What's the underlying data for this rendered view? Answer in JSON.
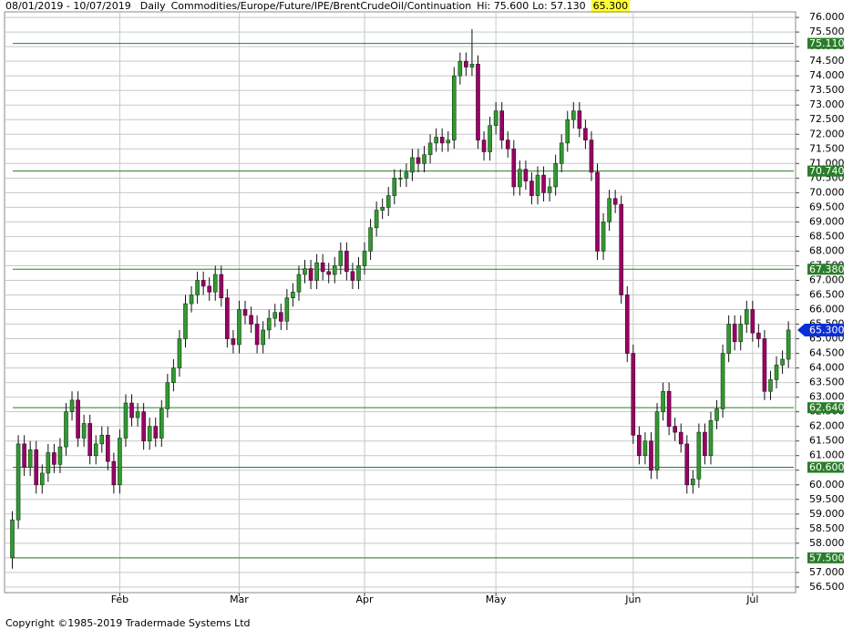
{
  "chart_data": {
    "type": "candlestick",
    "header": {
      "range": "08/01/2019 - 10/07/2019",
      "interval": "Daily",
      "symbol": "Commodities/Europe/Future/IPE/BrentCrudeOil/Continuation",
      "hi": "Hi: 75.600",
      "lo": "Lo: 57.130"
    },
    "last": {
      "value": 65.3,
      "label": "65.300"
    },
    "footer": "Copyright ©1985-2019 Tradermade Systems Ltd",
    "up_color": "#339933",
    "down_color": "#990066",
    "level_color": "#2a7d2a",
    "last_color": "#0a2fd6",
    "grid": true,
    "xlim": [
      -1.3,
      131.2
    ],
    "xticks": [
      {
        "value": 18,
        "label": "Feb"
      },
      {
        "value": 38,
        "label": "Mar"
      },
      {
        "value": 59,
        "label": "Apr"
      },
      {
        "value": 81,
        "label": "May"
      },
      {
        "value": 104,
        "label": "Jun"
      },
      {
        "value": 124,
        "label": "Jul"
      }
    ],
    "ylim": [
      56.31,
      76.19
    ],
    "yticks": [
      {
        "value": 56.5,
        "label": "56.500"
      },
      {
        "value": 57,
        "label": "57.000"
      },
      {
        "value": 57.5,
        "label": "57.500"
      },
      {
        "value": 58,
        "label": "58.000"
      },
      {
        "value": 58.5,
        "label": "58.500"
      },
      {
        "value": 59,
        "label": "59.000"
      },
      {
        "value": 59.5,
        "label": "59.500"
      },
      {
        "value": 60,
        "label": "60.000"
      },
      {
        "value": 60.5,
        "label": "60.500"
      },
      {
        "value": 61,
        "label": "61.000"
      },
      {
        "value": 61.5,
        "label": "61.500"
      },
      {
        "value": 62,
        "label": "62.000"
      },
      {
        "value": 62.5,
        "label": "62.500"
      },
      {
        "value": 63,
        "label": "63.000"
      },
      {
        "value": 63.5,
        "label": "63.500"
      },
      {
        "value": 64,
        "label": "64.000"
      },
      {
        "value": 64.5,
        "label": "64.500"
      },
      {
        "value": 65,
        "label": "65.000"
      },
      {
        "value": 65.5,
        "label": "65.500"
      },
      {
        "value": 66,
        "label": "66.000"
      },
      {
        "value": 66.5,
        "label": "66.500"
      },
      {
        "value": 67,
        "label": "67.000"
      },
      {
        "value": 67.5,
        "label": "67.500"
      },
      {
        "value": 68,
        "label": "68.000"
      },
      {
        "value": 68.5,
        "label": "68.500"
      },
      {
        "value": 69,
        "label": "69.000"
      },
      {
        "value": 69.5,
        "label": "69.500"
      },
      {
        "value": 70,
        "label": "70.000"
      },
      {
        "value": 70.5,
        "label": "70.500"
      },
      {
        "value": 71,
        "label": "71.000"
      },
      {
        "value": 71.5,
        "label": "71.500"
      },
      {
        "value": 72,
        "label": "72.000"
      },
      {
        "value": 72.5,
        "label": "72.500"
      },
      {
        "value": 73,
        "label": "73.000"
      },
      {
        "value": 73.5,
        "label": "73.500"
      },
      {
        "value": 74,
        "label": "74.000"
      },
      {
        "value": 74.5,
        "label": "74.500"
      },
      {
        "value": 75,
        "label": "75.000"
      },
      {
        "value": 75.5,
        "label": "75.500"
      },
      {
        "value": 76,
        "label": "76.000"
      }
    ],
    "levels": [
      {
        "value": 75.11,
        "label": "75.110"
      },
      {
        "value": 70.74,
        "label": "70.740"
      },
      {
        "value": 67.38,
        "label": "67.380"
      },
      {
        "value": 62.64,
        "label": "62.640"
      },
      {
        "value": 60.6,
        "label": "60.600"
      },
      {
        "value": 57.5,
        "label": "57.500"
      }
    ],
    "open": [
      57.5,
      58.8,
      61.4,
      60.6,
      61.2,
      60.0,
      60.4,
      61.1,
      60.7,
      61.3,
      62.5,
      62.9,
      61.6,
      62.1,
      61.0,
      61.4,
      61.7,
      60.8,
      60.0,
      61.6,
      62.8,
      62.3,
      62.5,
      61.5,
      62.0,
      61.6,
      62.6,
      63.5,
      64.0,
      65.0,
      66.2,
      66.5,
      67.0,
      66.8,
      66.6,
      67.2,
      66.4,
      65.0,
      64.8,
      66.0,
      65.8,
      65.5,
      64.8,
      65.3,
      65.7,
      65.9,
      65.6,
      66.4,
      66.6,
      67.2,
      67.4,
      67.0,
      67.6,
      67.3,
      67.2,
      67.5,
      68.0,
      67.3,
      67.0,
      67.5,
      68.0,
      68.8,
      69.4,
      69.5,
      69.9,
      70.5,
      70.5,
      70.7,
      71.2,
      71.0,
      71.3,
      71.7,
      71.9,
      71.7,
      71.8,
      74.0,
      74.5,
      74.3,
      74.4,
      71.8,
      71.4,
      72.3,
      72.8,
      71.8,
      71.5,
      70.2,
      70.8,
      70.4,
      69.9,
      70.6,
      70.0,
      70.2,
      71.0,
      71.7,
      72.5,
      72.8,
      72.2,
      71.8,
      70.7,
      68.0,
      69.0,
      69.8,
      69.6,
      66.5,
      64.5,
      61.7,
      61.0,
      61.5,
      60.5,
      62.5,
      63.2,
      62.0,
      61.8,
      61.4,
      60.0,
      60.2,
      61.8,
      61.0,
      62.2,
      62.6,
      64.5,
      65.5,
      64.9,
      65.5,
      66.0,
      65.2,
      65.0,
      63.2,
      63.6,
      64.1,
      64.3
    ],
    "high": [
      59.1,
      61.7,
      61.7,
      61.5,
      61.5,
      60.7,
      61.4,
      61.4,
      61.6,
      62.8,
      63.2,
      63.2,
      62.4,
      62.4,
      61.7,
      62.0,
      62.0,
      61.1,
      61.9,
      63.1,
      63.1,
      62.8,
      62.8,
      62.3,
      62.3,
      62.9,
      63.8,
      64.3,
      65.3,
      66.5,
      66.8,
      67.3,
      67.3,
      67.1,
      67.5,
      67.5,
      66.7,
      65.3,
      66.3,
      66.3,
      66.1,
      65.8,
      65.6,
      66.0,
      66.2,
      66.2,
      66.7,
      66.9,
      67.5,
      67.7,
      67.7,
      67.9,
      67.9,
      67.6,
      67.8,
      68.3,
      68.3,
      67.6,
      67.8,
      68.3,
      69.1,
      69.7,
      69.8,
      70.2,
      70.8,
      70.8,
      71.0,
      71.5,
      71.5,
      71.6,
      72.0,
      72.2,
      72.2,
      72.1,
      74.3,
      74.8,
      74.8,
      75.6,
      74.7,
      72.1,
      72.6,
      73.1,
      73.1,
      72.1,
      71.8,
      71.1,
      71.1,
      70.7,
      70.9,
      70.9,
      70.5,
      71.3,
      72.0,
      72.8,
      73.1,
      73.1,
      72.5,
      72.1,
      71.0,
      69.3,
      70.1,
      70.1,
      69.9,
      66.8,
      64.8,
      62.0,
      61.8,
      61.8,
      62.8,
      63.5,
      63.5,
      62.3,
      62.1,
      61.7,
      60.5,
      62.1,
      62.1,
      62.5,
      62.9,
      64.8,
      65.8,
      65.8,
      65.8,
      66.3,
      66.3,
      65.5,
      65.3,
      63.9,
      64.4,
      64.6,
      65.6
    ],
    "low": [
      57.13,
      58.5,
      60.3,
      60.3,
      59.7,
      59.7,
      60.1,
      60.4,
      60.4,
      61.0,
      62.2,
      61.3,
      61.3,
      60.7,
      60.7,
      61.1,
      60.5,
      59.7,
      59.7,
      61.3,
      62.0,
      62.0,
      61.2,
      61.2,
      61.3,
      61.3,
      62.3,
      63.2,
      63.7,
      64.7,
      65.9,
      66.2,
      66.5,
      66.3,
      66.3,
      66.1,
      64.7,
      64.5,
      64.5,
      65.5,
      65.2,
      64.5,
      64.5,
      65.0,
      65.4,
      65.3,
      65.3,
      66.1,
      66.3,
      66.9,
      66.7,
      66.7,
      67.0,
      66.9,
      66.9,
      67.2,
      67.0,
      66.7,
      66.7,
      67.2,
      67.7,
      68.5,
      69.1,
      69.2,
      69.6,
      70.2,
      70.2,
      70.4,
      70.7,
      70.7,
      71.0,
      71.4,
      71.4,
      71.4,
      71.5,
      73.7,
      74.0,
      74.0,
      71.5,
      71.1,
      71.1,
      72.0,
      71.5,
      71.2,
      69.9,
      69.9,
      70.1,
      69.6,
      69.6,
      69.7,
      69.7,
      69.9,
      70.7,
      71.4,
      72.2,
      71.9,
      71.5,
      70.4,
      67.7,
      67.7,
      68.7,
      69.3,
      66.2,
      64.2,
      61.4,
      60.7,
      60.7,
      60.2,
      60.2,
      62.2,
      61.7,
      61.5,
      61.1,
      59.7,
      59.7,
      59.9,
      60.7,
      60.7,
      61.9,
      62.3,
      64.2,
      64.6,
      64.6,
      65.2,
      64.9,
      64.7,
      62.9,
      62.9,
      63.3,
      63.8,
      64.0
    ],
    "close": [
      58.8,
      61.4,
      60.6,
      61.2,
      60.0,
      60.4,
      61.1,
      60.7,
      61.3,
      62.5,
      62.9,
      61.6,
      62.1,
      61.0,
      61.4,
      61.7,
      60.8,
      60.0,
      61.6,
      62.8,
      62.3,
      62.5,
      61.5,
      62.0,
      61.6,
      62.6,
      63.5,
      64.0,
      65.0,
      66.2,
      66.5,
      67.0,
      66.8,
      66.6,
      67.2,
      66.4,
      65.0,
      64.8,
      66.0,
      65.8,
      65.5,
      64.8,
      65.3,
      65.7,
      65.9,
      65.6,
      66.4,
      66.6,
      67.2,
      67.4,
      67.0,
      67.6,
      67.3,
      67.2,
      67.5,
      68.0,
      67.3,
      67.0,
      67.5,
      68.0,
      68.8,
      69.4,
      69.5,
      69.9,
      70.5,
      70.5,
      70.7,
      71.2,
      71.0,
      71.3,
      71.7,
      71.9,
      71.7,
      71.8,
      74.0,
      74.5,
      74.3,
      74.4,
      71.8,
      71.4,
      72.3,
      72.8,
      71.8,
      71.5,
      70.2,
      70.8,
      70.4,
      69.9,
      70.6,
      70.0,
      70.2,
      71.0,
      71.7,
      72.5,
      72.8,
      72.2,
      71.8,
      70.7,
      68.0,
      69.0,
      69.8,
      69.6,
      66.5,
      64.5,
      61.7,
      61.0,
      61.5,
      60.5,
      62.5,
      63.2,
      62.0,
      61.8,
      61.4,
      60.0,
      60.2,
      61.8,
      61.0,
      62.2,
      62.6,
      64.5,
      65.5,
      64.9,
      65.5,
      66.0,
      65.2,
      65.0,
      63.2,
      63.6,
      64.1,
      64.3,
      65.3
    ]
  }
}
